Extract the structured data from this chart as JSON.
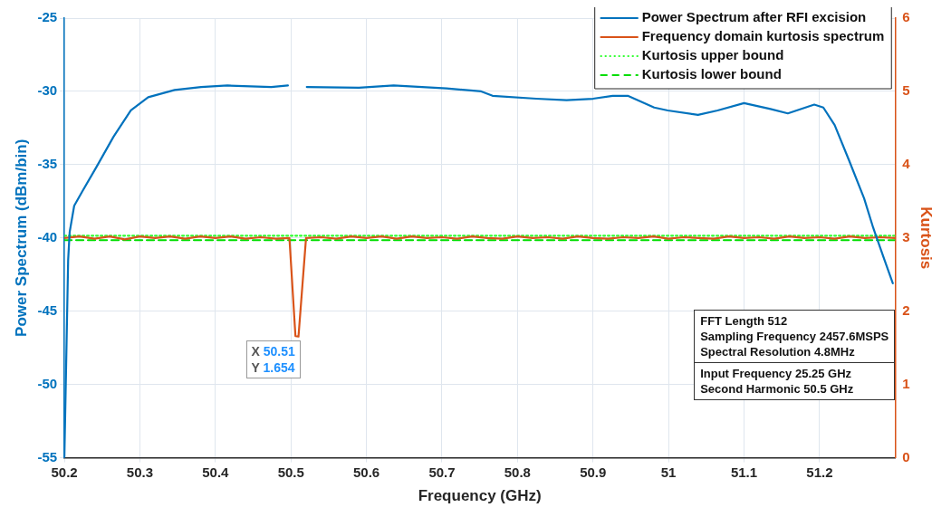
{
  "chart_data": {
    "type": "line",
    "xlabel": "Frequency (GHz)",
    "ylabel": "Power Spectrum (dBm/bin)",
    "y2label": "Kurtosis",
    "xlim": [
      50.2,
      51.3
    ],
    "xticks": [
      50.2,
      50.3,
      50.4,
      50.5,
      50.6,
      50.7,
      50.8,
      50.9,
      51,
      51.1,
      51.2
    ],
    "ylim": [
      -55,
      -25
    ],
    "yticks": [
      -55,
      -50,
      -45,
      -40,
      -35,
      -30,
      -25
    ],
    "y2lim": [
      0,
      6
    ],
    "y2ticks": [
      0,
      1,
      2,
      3,
      4,
      5,
      6
    ],
    "grid": true,
    "legend": "top right",
    "marker": "none",
    "series": [
      {
        "name": "Power Spectrum after RFI excision",
        "color": "#0072bd",
        "line_style": "solid",
        "x": [
          50.2,
          50.205,
          50.207,
          50.213,
          50.224,
          50.242,
          50.265,
          50.288,
          50.311,
          50.346,
          50.381,
          50.416,
          50.474,
          50.496,
          50.508,
          50.521,
          50.59,
          50.636,
          50.706,
          50.752,
          50.767,
          50.825,
          50.865,
          50.9,
          50.926,
          50.946,
          50.981,
          50.999,
          51.039,
          51.065,
          51.1,
          51.135,
          51.158,
          51.193,
          51.205,
          51.22,
          51.239,
          51.259,
          51.271,
          51.286,
          51.297
        ],
        "values": [
          -55,
          -41.5,
          -39.6,
          -37.8,
          -36.8,
          -35.2,
          -33.1,
          -31.3,
          -30.4,
          -29.9,
          -29.7,
          -29.6,
          -29.7,
          -29.6,
          null,
          -29.7,
          -29.75,
          -29.6,
          -29.8,
          -30.0,
          -30.3,
          -30.5,
          -30.6,
          -30.5,
          -30.3,
          -30.3,
          -31.1,
          -31.3,
          -31.6,
          -31.3,
          -30.8,
          -31.2,
          -31.5,
          -30.9,
          -31.1,
          -32.3,
          -34.7,
          -37.3,
          -39.3,
          -41.5,
          -43.1
        ]
      },
      {
        "name": "Frequency domain kurtosis spectrum",
        "color": "#d95319",
        "line_style": "solid",
        "axis": "y2",
        "x": [
          50.2,
          50.22,
          50.24,
          50.26,
          50.28,
          50.3,
          50.32,
          50.34,
          50.36,
          50.38,
          50.4,
          50.42,
          50.44,
          50.46,
          50.48,
          50.498,
          50.506,
          50.51,
          50.52,
          50.54,
          50.56,
          50.58,
          50.6,
          50.62,
          50.64,
          50.66,
          50.68,
          50.7,
          50.72,
          50.74,
          50.76,
          50.78,
          50.8,
          50.82,
          50.84,
          50.86,
          50.88,
          50.9,
          50.92,
          50.94,
          50.96,
          50.98,
          51,
          51.02,
          51.04,
          51.06,
          51.08,
          51.1,
          51.12,
          51.14,
          51.16,
          51.18,
          51.2,
          51.22,
          51.24,
          51.26,
          51.28,
          51.3
        ],
        "values": [
          3.0,
          3.02,
          2.99,
          3.02,
          2.98,
          3.02,
          3.0,
          3.02,
          2.99,
          3.02,
          3.0,
          3.02,
          2.99,
          3.01,
          2.99,
          3.0,
          1.66,
          1.654,
          3.0,
          3.01,
          2.99,
          3.02,
          3.0,
          3.02,
          2.99,
          3.02,
          3.0,
          3.01,
          2.99,
          3.02,
          3.0,
          2.99,
          3.02,
          3.0,
          3.01,
          2.99,
          3.02,
          3.0,
          2.99,
          3.01,
          3.0,
          3.02,
          2.99,
          3.01,
          3.0,
          2.99,
          3.02,
          3.0,
          3.01,
          2.99,
          3.02,
          3.0,
          3.01,
          2.99,
          3.02,
          3.0,
          3.01,
          3.0
        ]
      },
      {
        "name": "Kurtosis upper bound",
        "color": "#33ff33",
        "line_style": "dotted",
        "axis": "y2",
        "x": [
          50.2,
          51.3
        ],
        "values": [
          3.03,
          3.03
        ]
      },
      {
        "name": "Kurtosis lower bound",
        "color": "#00dd00",
        "line_style": "dashed",
        "axis": "y2",
        "x": [
          50.2,
          51.3
        ],
        "values": [
          2.97,
          2.97
        ]
      }
    ],
    "annotations": [
      "FFT Length 512\nSampling Frequency 2457.6MSPS\nSpectral Resolution 4.8MHz",
      "Input Frequency 25.25 GHz\nSecond Harmonic 50.5 GHz",
      "X 50.51\nY 1.654"
    ]
  }
}
